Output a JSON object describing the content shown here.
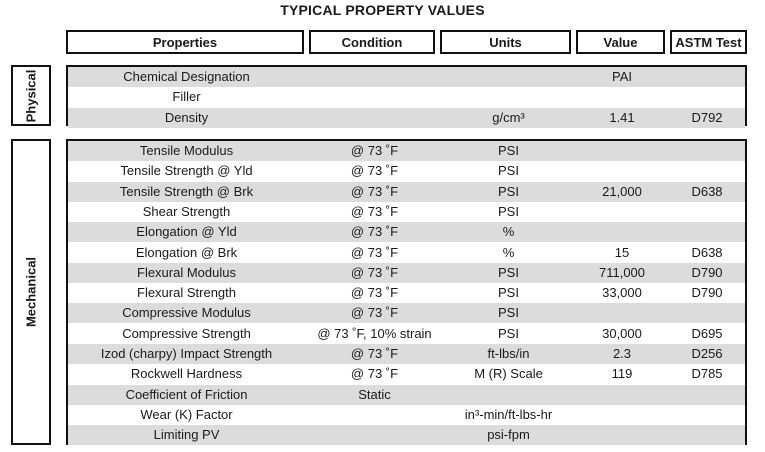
{
  "title": "TYPICAL PROPERTY VALUES",
  "headers": {
    "properties": "Properties",
    "condition": "Condition",
    "units": "Units",
    "value": "Value",
    "astm": "ASTM Test"
  },
  "sections": {
    "physical": {
      "label": "Physical",
      "rows": [
        {
          "property": "Chemical Designation",
          "condition": "",
          "units": "",
          "value": "PAI",
          "astm": ""
        },
        {
          "property": "Filler",
          "condition": "",
          "units": "",
          "value": "",
          "astm": ""
        },
        {
          "property": "Density",
          "condition": "",
          "units": "g/cm³",
          "value": "1.41",
          "astm": "D792"
        }
      ]
    },
    "mechanical": {
      "label": "Mechanical",
      "rows": [
        {
          "property": "Tensile Modulus",
          "condition": "@ 73 ˚F",
          "units": "PSI",
          "value": "",
          "astm": ""
        },
        {
          "property": "Tensile Strength @ Yld",
          "condition": "@ 73 ˚F",
          "units": "PSI",
          "value": "",
          "astm": ""
        },
        {
          "property": "Tensile Strength @ Brk",
          "condition": "@ 73 ˚F",
          "units": "PSI",
          "value": "21,000",
          "astm": "D638"
        },
        {
          "property": "Shear Strength",
          "condition": "@ 73 ˚F",
          "units": "PSI",
          "value": "",
          "astm": ""
        },
        {
          "property": "Elongation @ Yld",
          "condition": "@ 73 ˚F",
          "units": "%",
          "value": "",
          "astm": ""
        },
        {
          "property": "Elongation @ Brk",
          "condition": "@ 73 ˚F",
          "units": "%",
          "value": "15",
          "astm": "D638"
        },
        {
          "property": "Flexural Modulus",
          "condition": "@ 73 ˚F",
          "units": "PSI",
          "value": "711,000",
          "astm": "D790"
        },
        {
          "property": "Flexural Strength",
          "condition": "@ 73 ˚F",
          "units": "PSI",
          "value": "33,000",
          "astm": "D790"
        },
        {
          "property": "Compressive Modulus",
          "condition": "@ 73 ˚F",
          "units": "PSI",
          "value": "",
          "astm": ""
        },
        {
          "property": "Compressive Strength",
          "condition": "@ 73 ˚F, 10% strain",
          "units": "PSI",
          "value": "30,000",
          "astm": "D695"
        },
        {
          "property": "Izod (charpy) Impact Strength",
          "condition": "@ 73 ˚F",
          "units": "ft-lbs/in",
          "value": "2.3",
          "astm": "D256"
        },
        {
          "property": "Rockwell Hardness",
          "condition": "@ 73 ˚F",
          "units": "M (R) Scale",
          "value": "119",
          "astm": "D785"
        },
        {
          "property": "Coefficient of Friction",
          "condition": "Static",
          "units": "",
          "value": "",
          "astm": ""
        },
        {
          "property": "Wear (K) Factor",
          "condition": "",
          "units": "in³-min/ft-lbs-hr",
          "value": "",
          "astm": ""
        },
        {
          "property": "Limiting PV",
          "condition": "",
          "units": "psi-fpm",
          "value": "",
          "astm": ""
        }
      ]
    }
  }
}
